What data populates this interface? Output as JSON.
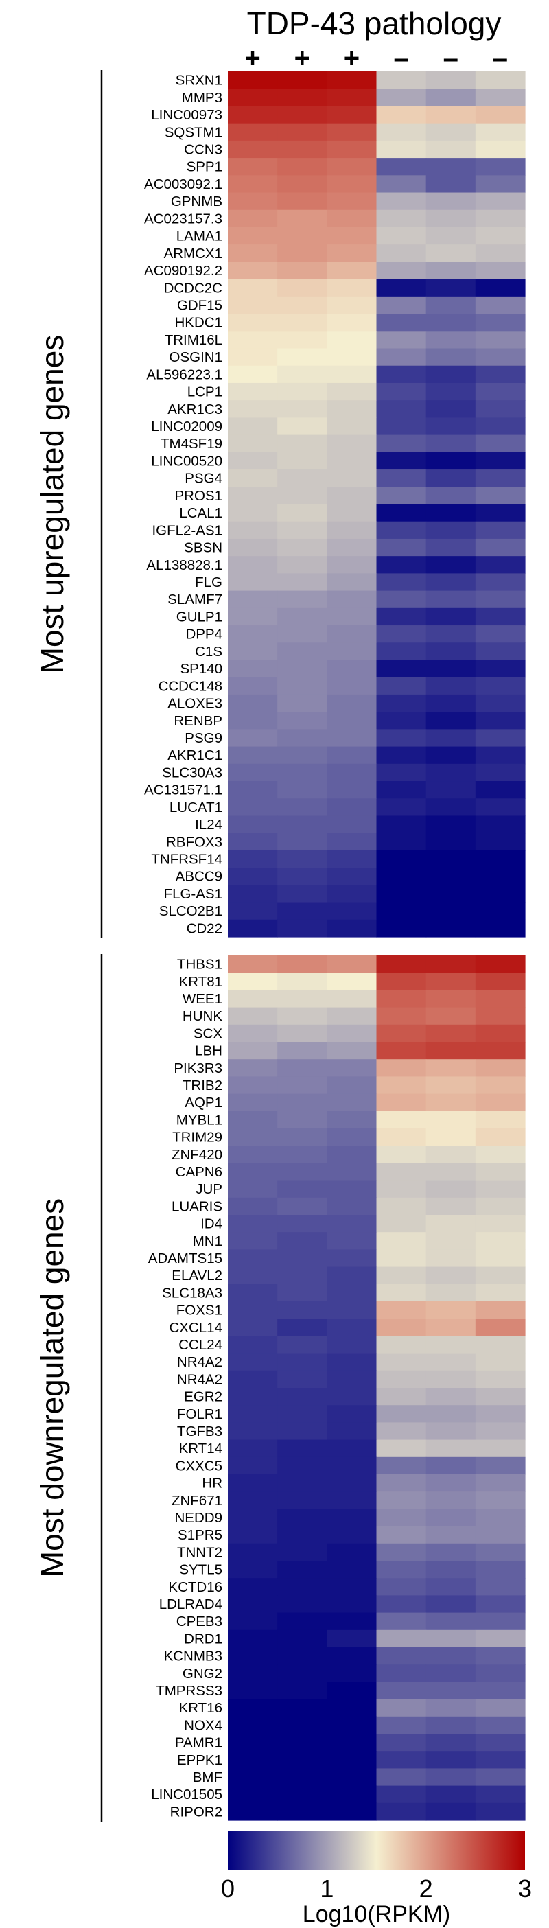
{
  "chart_data": {
    "type": "heatmap",
    "title": "TDP-43 pathology",
    "columns": [
      "+",
      "+",
      "+",
      "–",
      "–",
      "–"
    ],
    "groups": [
      {
        "name": "Most upregulated genes",
        "genes": [
          "SRXN1",
          "MMP3",
          "LINC00973",
          "SQSTM1",
          "CCN3",
          "SPP1",
          "AC003092.1",
          "GPNMB",
          "AC023157.3",
          "LAMA1",
          "ARMCX1",
          "AC090192.2",
          "DCDC2C",
          "GDF15",
          "HKDC1",
          "TRIM16L",
          "OSGIN1",
          "AL596223.1",
          "LCP1",
          "AKR1C3",
          "LINC02009",
          "TM4SF19",
          "LINC00520",
          "PSG4",
          "PROS1",
          "LCAL1",
          "IGFL2-AS1",
          "SBSN",
          "AL138828.1",
          "FLG",
          "SLAMF7",
          "GULP1",
          "DPP4",
          "C1S",
          "SP140",
          "CCDC148",
          "ALOXE3",
          "RENBP",
          "PSG9",
          "AKR1C1",
          "SLC30A3",
          "AC131571.1",
          "LUCAT1",
          "IL24",
          "RBFOX3",
          "TNFRSF14",
          "ABCC9",
          "FLG-AS1",
          "SLCO2B1",
          "CD22"
        ],
        "values": [
          [
            2.95,
            2.95,
            2.92,
            1.25,
            1.2,
            1.3
          ],
          [
            2.85,
            2.85,
            2.82,
            1.05,
            0.95,
            1.1
          ],
          [
            2.75,
            2.75,
            2.72,
            1.7,
            1.75,
            1.8
          ],
          [
            2.55,
            2.55,
            2.5,
            1.35,
            1.3,
            1.4
          ],
          [
            2.45,
            2.45,
            2.4,
            1.4,
            1.35,
            1.45
          ],
          [
            2.3,
            2.35,
            2.3,
            0.55,
            0.55,
            0.6
          ],
          [
            2.25,
            2.3,
            2.25,
            0.75,
            0.55,
            0.7
          ],
          [
            2.2,
            2.25,
            2.2,
            1.1,
            1.05,
            1.1
          ],
          [
            2.1,
            2.05,
            2.1,
            1.2,
            1.15,
            1.2
          ],
          [
            2.05,
            2.05,
            2.05,
            1.25,
            1.2,
            1.25
          ],
          [
            2.0,
            2.05,
            2.0,
            1.2,
            1.25,
            1.2
          ],
          [
            1.9,
            1.95,
            1.85,
            1.05,
            1.0,
            1.05
          ],
          [
            1.65,
            1.7,
            1.65,
            0.1,
            0.15,
            0.05
          ],
          [
            1.65,
            1.65,
            1.6,
            0.8,
            0.65,
            0.8
          ],
          [
            1.6,
            1.6,
            1.55,
            0.6,
            0.6,
            0.65
          ],
          [
            1.55,
            1.55,
            1.5,
            0.9,
            0.8,
            0.85
          ],
          [
            1.55,
            1.5,
            1.5,
            0.8,
            0.7,
            0.75
          ],
          [
            1.5,
            1.45,
            1.45,
            0.35,
            0.3,
            0.4
          ],
          [
            1.4,
            1.4,
            1.35,
            0.45,
            0.35,
            0.5
          ],
          [
            1.35,
            1.35,
            1.3,
            0.4,
            0.3,
            0.45
          ],
          [
            1.3,
            1.4,
            1.3,
            0.4,
            0.35,
            0.4
          ],
          [
            1.3,
            1.3,
            1.25,
            0.55,
            0.5,
            0.6
          ],
          [
            1.25,
            1.3,
            1.25,
            0.1,
            0.05,
            0.1
          ],
          [
            1.3,
            1.25,
            1.25,
            0.5,
            0.35,
            0.45
          ],
          [
            1.25,
            1.25,
            1.2,
            0.7,
            0.6,
            0.7
          ],
          [
            1.25,
            1.3,
            1.2,
            0.05,
            0.05,
            0.1
          ],
          [
            1.2,
            1.25,
            1.15,
            0.4,
            0.35,
            0.45
          ],
          [
            1.15,
            1.2,
            1.1,
            0.55,
            0.45,
            0.6
          ],
          [
            1.1,
            1.15,
            1.05,
            0.15,
            0.1,
            0.2
          ],
          [
            1.1,
            1.1,
            1.0,
            0.4,
            0.35,
            0.45
          ],
          [
            0.95,
            0.95,
            0.9,
            0.55,
            0.5,
            0.55
          ],
          [
            0.95,
            0.9,
            0.9,
            0.25,
            0.2,
            0.3
          ],
          [
            0.9,
            0.9,
            0.85,
            0.45,
            0.4,
            0.5
          ],
          [
            0.9,
            0.85,
            0.85,
            0.35,
            0.3,
            0.4
          ],
          [
            0.85,
            0.85,
            0.8,
            0.1,
            0.1,
            0.15
          ],
          [
            0.8,
            0.85,
            0.8,
            0.4,
            0.3,
            0.35
          ],
          [
            0.75,
            0.85,
            0.75,
            0.25,
            0.2,
            0.3
          ],
          [
            0.75,
            0.8,
            0.75,
            0.2,
            0.1,
            0.2
          ],
          [
            0.8,
            0.75,
            0.75,
            0.35,
            0.3,
            0.4
          ],
          [
            0.7,
            0.7,
            0.65,
            0.15,
            0.1,
            0.2
          ],
          [
            0.65,
            0.65,
            0.6,
            0.25,
            0.2,
            0.25
          ],
          [
            0.6,
            0.65,
            0.6,
            0.15,
            0.2,
            0.1
          ],
          [
            0.6,
            0.6,
            0.55,
            0.2,
            0.15,
            0.2
          ],
          [
            0.55,
            0.55,
            0.55,
            0.1,
            0.05,
            0.1
          ],
          [
            0.5,
            0.55,
            0.5,
            0.1,
            0.05,
            0.1
          ],
          [
            0.35,
            0.4,
            0.35,
            0.0,
            0.0,
            0.0
          ],
          [
            0.3,
            0.35,
            0.3,
            0.0,
            0.0,
            0.0
          ],
          [
            0.25,
            0.3,
            0.25,
            0.0,
            0.0,
            0.0
          ],
          [
            0.25,
            0.2,
            0.2,
            0.0,
            0.0,
            0.0
          ],
          [
            0.15,
            0.2,
            0.15,
            0.0,
            0.0,
            0.0
          ]
        ]
      },
      {
        "name": "Most downregulated genes",
        "genes": [
          "THBS1",
          "KRT81",
          "WEE1",
          "HUNK",
          "SCX",
          "LBH",
          "PIK3R3",
          "TRIB2",
          "AQP1",
          "MYBL1",
          "TRIM29",
          "ZNF420",
          "CAPN6",
          "JUP",
          "LUARIS",
          "ID4",
          "MN1",
          "ADAMTS15",
          "ELAVL2",
          "SLC18A3",
          "FOXS1",
          "CXCL14",
          "CCL24",
          "NR4A2",
          "NR4A2",
          "EGR2",
          "FOLR1",
          "TGFB3",
          "KRT14",
          "CXXC5",
          "HR",
          "ZNF671",
          "NEDD9",
          "S1PR5",
          "TNNT2",
          "SYTL5",
          "KCTD16",
          "LDLRAD4",
          "CPEB3",
          "DRD1",
          "KCNMB3",
          "GNG2",
          "TMPRSS3",
          "KRT16",
          "NOX4",
          "PAMR1",
          "EPPK1",
          "BMF",
          "LINC01505",
          "RIPOR2"
        ],
        "values": [
          [
            2.1,
            2.15,
            2.1,
            2.8,
            2.8,
            2.85
          ],
          [
            1.5,
            1.45,
            1.5,
            2.55,
            2.5,
            2.6
          ],
          [
            1.35,
            1.35,
            1.35,
            2.4,
            2.35,
            2.4
          ],
          [
            1.2,
            1.25,
            1.2,
            2.35,
            2.3,
            2.4
          ],
          [
            1.1,
            1.15,
            1.1,
            2.45,
            2.5,
            2.55
          ],
          [
            1.05,
            0.95,
            1.0,
            2.55,
            2.6,
            2.6
          ],
          [
            0.85,
            0.8,
            0.8,
            1.95,
            1.9,
            1.95
          ],
          [
            0.8,
            0.8,
            0.75,
            1.85,
            1.8,
            1.85
          ],
          [
            0.75,
            0.75,
            0.75,
            1.9,
            1.85,
            1.9
          ],
          [
            0.7,
            0.75,
            0.7,
            1.55,
            1.55,
            1.6
          ],
          [
            0.7,
            0.7,
            0.65,
            1.6,
            1.55,
            1.65
          ],
          [
            0.65,
            0.65,
            0.6,
            1.4,
            1.35,
            1.4
          ],
          [
            0.6,
            0.6,
            0.6,
            1.25,
            1.25,
            1.3
          ],
          [
            0.6,
            0.55,
            0.55,
            1.25,
            1.2,
            1.25
          ],
          [
            0.55,
            0.6,
            0.55,
            1.3,
            1.25,
            1.3
          ],
          [
            0.5,
            0.5,
            0.5,
            1.3,
            1.35,
            1.35
          ],
          [
            0.5,
            0.45,
            0.5,
            1.4,
            1.35,
            1.4
          ],
          [
            0.45,
            0.45,
            0.45,
            1.4,
            1.35,
            1.4
          ],
          [
            0.45,
            0.45,
            0.4,
            1.3,
            1.25,
            1.3
          ],
          [
            0.4,
            0.45,
            0.4,
            1.35,
            1.3,
            1.35
          ],
          [
            0.4,
            0.4,
            0.4,
            1.9,
            1.85,
            1.95
          ],
          [
            0.4,
            0.3,
            0.35,
            1.95,
            1.9,
            2.15
          ],
          [
            0.35,
            0.4,
            0.35,
            1.3,
            1.3,
            1.3
          ],
          [
            0.35,
            0.35,
            0.3,
            1.25,
            1.25,
            1.3
          ],
          [
            0.3,
            0.35,
            0.3,
            1.2,
            1.2,
            1.25
          ],
          [
            0.3,
            0.3,
            0.3,
            1.15,
            1.1,
            1.15
          ],
          [
            0.3,
            0.3,
            0.25,
            1.0,
            1.0,
            1.05
          ],
          [
            0.3,
            0.3,
            0.25,
            1.1,
            1.05,
            1.1
          ],
          [
            0.25,
            0.2,
            0.2,
            1.25,
            1.2,
            1.2
          ],
          [
            0.25,
            0.2,
            0.2,
            0.7,
            0.65,
            0.7
          ],
          [
            0.2,
            0.2,
            0.2,
            0.85,
            0.8,
            0.85
          ],
          [
            0.2,
            0.2,
            0.2,
            0.9,
            0.85,
            0.9
          ],
          [
            0.2,
            0.15,
            0.15,
            0.85,
            0.8,
            0.85
          ],
          [
            0.2,
            0.15,
            0.15,
            0.9,
            0.85,
            0.85
          ],
          [
            0.15,
            0.15,
            0.1,
            0.7,
            0.65,
            0.7
          ],
          [
            0.15,
            0.1,
            0.1,
            0.6,
            0.55,
            0.6
          ],
          [
            0.1,
            0.1,
            0.1,
            0.55,
            0.5,
            0.6
          ],
          [
            0.1,
            0.1,
            0.1,
            0.45,
            0.4,
            0.5
          ],
          [
            0.1,
            0.05,
            0.05,
            0.65,
            0.6,
            0.6
          ],
          [
            0.05,
            0.05,
            0.15,
            1.0,
            1.0,
            1.05
          ],
          [
            0.05,
            0.05,
            0.05,
            0.55,
            0.55,
            0.6
          ],
          [
            0.05,
            0.05,
            0.05,
            0.5,
            0.5,
            0.55
          ],
          [
            0.05,
            0.05,
            0.0,
            0.6,
            0.6,
            0.6
          ],
          [
            0.0,
            0.0,
            0.0,
            0.85,
            0.8,
            0.85
          ],
          [
            0.0,
            0.0,
            0.0,
            0.6,
            0.55,
            0.6
          ],
          [
            0.0,
            0.0,
            0.0,
            0.45,
            0.4,
            0.45
          ],
          [
            0.0,
            0.0,
            0.0,
            0.35,
            0.3,
            0.35
          ],
          [
            0.0,
            0.0,
            0.0,
            0.55,
            0.5,
            0.55
          ],
          [
            0.0,
            0.0,
            0.0,
            0.3,
            0.25,
            0.3
          ],
          [
            0.0,
            0.0,
            0.0,
            0.25,
            0.2,
            0.25
          ]
        ]
      }
    ],
    "colorbar": {
      "label": "Log10(RPKM)",
      "range": [
        0,
        3
      ],
      "ticks": [
        "0",
        "1",
        "2",
        "3"
      ],
      "colors": [
        "#000080",
        "#f5efd0",
        "#b00000"
      ]
    }
  }
}
